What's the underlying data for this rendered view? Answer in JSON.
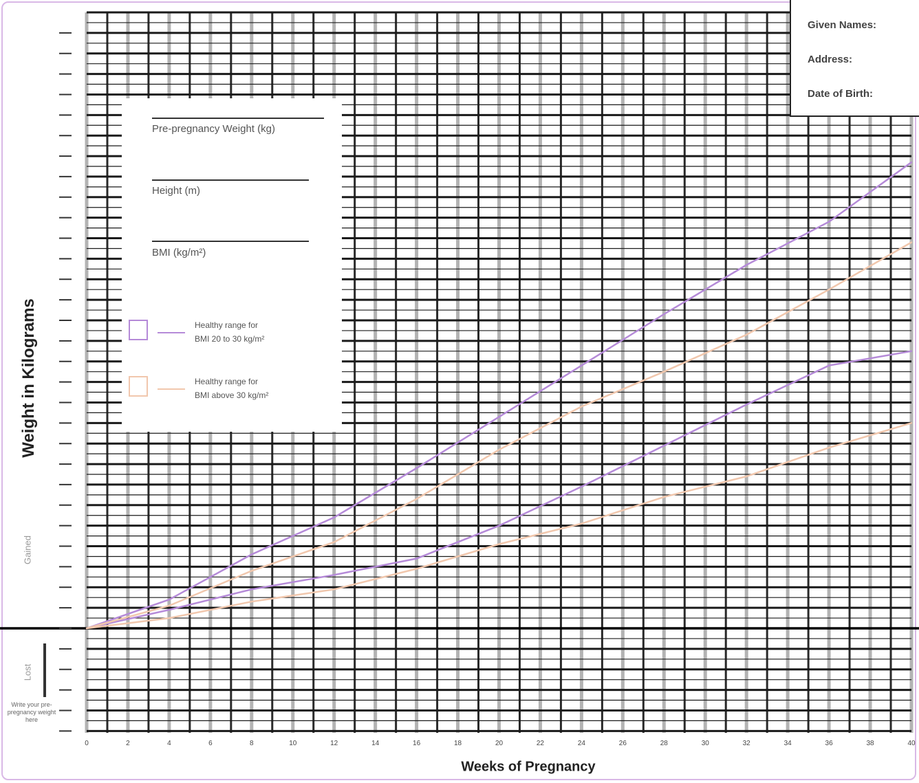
{
  "patient_info": {
    "given_names_label": "Given Names:",
    "address_label": "Address:",
    "dob_label": "Date of Birth:"
  },
  "fields": {
    "pre_pregnancy_weight_label": "Pre-pregnancy Weight (kg)",
    "height_label": "Height (m)",
    "bmi_label": "BMI (kg/m²)"
  },
  "legend": {
    "items": [
      {
        "label_line1": "Healthy range for",
        "label_line2": "BMI 20 to 30 kg/m²",
        "color": "#b58ad8"
      },
      {
        "label_line1": "Healthy range for",
        "label_line2": "BMI above 30 kg/m²",
        "color": "#f1c7ad"
      }
    ]
  },
  "side_labels": {
    "gained": "Gained",
    "lost": "Lost",
    "note": "Write your pre-pregnancy weight here"
  },
  "chart_data": {
    "type": "line",
    "xlabel": "Weeks of Pregnancy",
    "ylabel": "Weight in Kilograms",
    "xlim": [
      0,
      40
    ],
    "x_ticks": [
      "0",
      "2",
      "4",
      "6",
      "8",
      "10",
      "12",
      "14",
      "16",
      "18",
      "20",
      "22",
      "24",
      "26",
      "28",
      "30",
      "32",
      "34",
      "36",
      "38",
      "40"
    ],
    "ylim": [
      -5,
      30
    ],
    "baseline_y": 0,
    "grid": true,
    "series": [
      {
        "name": "Healthy range for BMI 20 to 30 kg/m² (upper)",
        "color": "#b58ad8",
        "x": [
          0,
          4,
          8,
          12,
          16,
          20,
          24,
          28,
          32,
          36,
          40
        ],
        "y": [
          0,
          1.4,
          3.6,
          5.4,
          7.8,
          10.3,
          12.8,
          15.3,
          17.7,
          19.8,
          22.7
        ]
      },
      {
        "name": "Healthy range for BMI 20 to 30 kg/m² (lower)",
        "color": "#b58ad8",
        "x": [
          0,
          4,
          8,
          12,
          16,
          20,
          24,
          28,
          32,
          36,
          40
        ],
        "y": [
          0,
          0.9,
          1.9,
          2.6,
          3.4,
          5.0,
          6.9,
          8.9,
          10.9,
          12.8,
          13.5
        ]
      },
      {
        "name": "Healthy range for BMI above 30 kg/m² (upper)",
        "color": "#f1c7ad",
        "x": [
          0,
          4,
          8,
          12,
          16,
          20,
          24,
          28,
          32,
          36,
          40
        ],
        "y": [
          0,
          1.1,
          2.8,
          4.2,
          6.3,
          8.7,
          10.8,
          12.5,
          14.3,
          16.5,
          18.8
        ]
      },
      {
        "name": "Healthy range for BMI above 30 kg/m² (lower)",
        "color": "#f1c7ad",
        "x": [
          0,
          4,
          8,
          12,
          16,
          20,
          24,
          28,
          32,
          36,
          40
        ],
        "y": [
          0,
          0.5,
          1.3,
          1.9,
          2.9,
          4.1,
          5.1,
          6.4,
          7.4,
          8.8,
          10.0
        ]
      }
    ]
  }
}
